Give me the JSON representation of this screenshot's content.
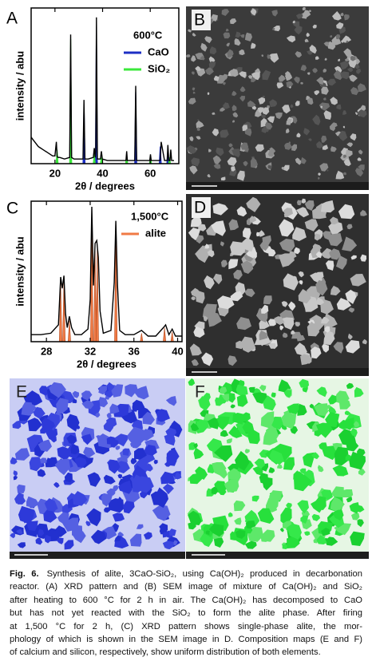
{
  "panels": {
    "a": "A",
    "b": "B",
    "c": "C",
    "d": "D",
    "e": "E",
    "f": "F"
  },
  "chart_data": [
    {
      "type": "xrd",
      "x_label": "2θ / degrees",
      "y_label": "intensity / abu",
      "legend_title": "600°C",
      "xlim": [
        10,
        72
      ],
      "xticks": [
        20,
        40,
        60
      ],
      "ylim": [
        0,
        100
      ],
      "series": [
        {
          "color": "#000000",
          "x": [
            10,
            11,
            12,
            13,
            14,
            15,
            16,
            17,
            18,
            19,
            20,
            20.6,
            20.9,
            21.2,
            22,
            24,
            26.2,
            26.6,
            27.0,
            28,
            30,
            31.8,
            32.2,
            32.6,
            34,
            36.1,
            36.5,
            36.9,
            37.1,
            37.4,
            37.8,
            39.1,
            39.5,
            39.9,
            42,
            45,
            49.8,
            50.1,
            50.4,
            52,
            53.5,
            53.9,
            54.3,
            58,
            59.8,
            60.1,
            60.4,
            63.8,
            64.2,
            64.6,
            66,
            67.1,
            67.4,
            67.8,
            68.3,
            68.6,
            69,
            70
          ],
          "values": [
            17,
            15,
            13,
            11,
            10,
            9,
            8,
            7,
            6,
            5,
            5,
            14,
            5,
            4,
            4,
            3,
            4,
            83,
            4,
            3,
            3,
            3,
            41,
            3,
            3,
            4,
            10,
            4,
            8,
            94,
            3,
            3,
            8,
            3,
            2,
            2,
            2,
            8,
            2,
            2,
            2,
            50,
            2,
            2,
            2,
            6,
            2,
            2,
            2,
            14,
            2,
            2,
            12,
            2,
            2,
            9,
            2,
            2
          ]
        },
        {
          "name": "CaO",
          "color": "#1d2fc4",
          "x": [
            32.2,
            37.4,
            53.9,
            64.2,
            67.4
          ],
          "values": [
            38,
            88,
            46,
            11,
            9
          ]
        },
        {
          "name": "SiO₂",
          "color": "#3be83b",
          "x": [
            20.9,
            26.6,
            36.5,
            39.5,
            50.1,
            60.1,
            68.1
          ],
          "values": [
            9,
            80,
            6,
            4,
            6,
            5,
            4
          ]
        }
      ]
    },
    {
      "type": "xrd",
      "x_label": "2θ / degrees",
      "y_label": "intensity / abu",
      "legend_title": "1,500°C",
      "xlim": [
        26.6,
        40.4
      ],
      "xticks": [
        28,
        32,
        36,
        40
      ],
      "ylim": [
        0,
        100
      ],
      "series": [
        {
          "color": "#000000",
          "x": [
            26.6,
            27.5,
            28.4,
            29.1,
            29.3,
            29.45,
            29.6,
            29.75,
            29.9,
            30.1,
            30.3,
            30.6,
            31.2,
            31.8,
            32.0,
            32.15,
            32.3,
            32.45,
            32.6,
            32.75,
            32.9,
            33.2,
            33.9,
            34.2,
            34.35,
            34.5,
            34.7,
            35.2,
            36.0,
            36.7,
            37.3,
            38.0,
            38.7,
            38.9,
            39.2,
            39.5,
            39.8,
            40.4
          ],
          "values": [
            5,
            5,
            6,
            12,
            46,
            38,
            47,
            20,
            10,
            18,
            10,
            5,
            5,
            9,
            30,
            96,
            40,
            70,
            72,
            60,
            22,
            6,
            8,
            42,
            86,
            40,
            8,
            5,
            5,
            8,
            4,
            4,
            10,
            12,
            5,
            9,
            4,
            4
          ]
        },
        {
          "name": "alite",
          "color": "#f07a45",
          "x": [
            29.3,
            29.6,
            30.1,
            32.15,
            32.45,
            32.65,
            34.35,
            36.7,
            38.8,
            39.5
          ],
          "values": [
            42,
            44,
            15,
            92,
            66,
            68,
            82,
            6,
            10,
            7
          ]
        }
      ]
    }
  ],
  "caption": {
    "label": "Fig. 6.",
    "lines": [
      "Synthesis of alite, 3CaO-SiO₂, using Ca(OH)₂ produced in decarbonation",
      "reactor. (A) XRD pattern and (B) SEM image of mixture of Ca(OH)₂ and SiO₂",
      "after heating to 600 °C for 2 h in air. The Ca(OH)₂ has decomposed to CaO",
      "but has not yet reacted with the SiO₂ to form the alite phase. After firing",
      "at 1,500 °C for 2 h, (C) XRD pattern shows single-phase alite, the mor-",
      "phology of which is shown in the SEM image in D. Composition maps (E and F)",
      "of calcium and silicon, respectively, show uniform distribution of both elements."
    ]
  }
}
